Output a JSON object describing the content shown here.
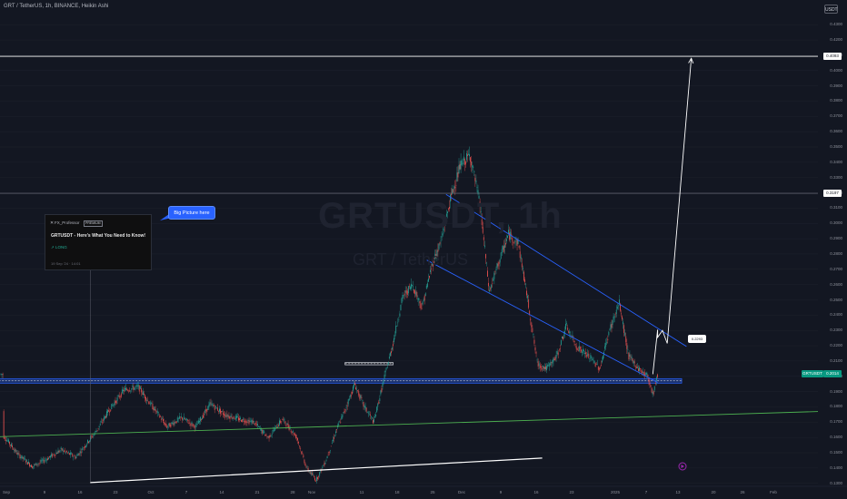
{
  "header": {
    "title": "GRT / TetherUS, 1h, BINANCE, Heikin Ashi",
    "currency_button": "USDT"
  },
  "watermark": {
    "symbol": "GRTUSDT, 1h",
    "name": "GRT / TetherUS"
  },
  "idea_card": {
    "author": "FX_Professor",
    "badge": "PREMIUM",
    "title": "GRTUSDT - Here's What You Need to Know!",
    "direction": "LONG",
    "date": "19 Sep '24 · 14:01"
  },
  "annotation": {
    "bubble": "Big Picture here",
    "price_tag": "0.2293"
  },
  "colors": {
    "background": "#131722",
    "bull": "#26a69a",
    "bear": "#ef5350",
    "trend_blue": "#2962ff",
    "support_green": "#4caf50",
    "arrow": "#ffffff",
    "grid": "#1e222d"
  },
  "chart_data": {
    "type": "candlestick",
    "style": "Heikin Ashi",
    "symbol": "GRTUSDT",
    "exchange": "BINANCE",
    "timeframe": "1h",
    "y_axis": {
      "ylim": [
        0.125,
        0.435
      ],
      "ticks": [
        "0.1300",
        "0.1400",
        "0.1500",
        "0.1600",
        "0.1700",
        "0.1800",
        "0.1900",
        "0.2000",
        "0.2100",
        "0.2200",
        "0.2300",
        "0.2400",
        "0.2500",
        "0.2600",
        "0.2700",
        "0.2800",
        "0.2900",
        "0.3000",
        "0.3100",
        "0.3200",
        "0.3300",
        "0.3400",
        "0.3500",
        "0.3600",
        "0.3700",
        "0.3800",
        "0.3900",
        "0.4000",
        "0.4100",
        "0.4200",
        "0.4300"
      ],
      "highlighted": [
        {
          "label": "0.4093",
          "value": 0.4093,
          "style": "white"
        },
        {
          "label": "0.3197",
          "value": 0.3197,
          "style": "white"
        },
        {
          "label": "GRTUSDT",
          "value": 0.2014,
          "style": "green"
        },
        {
          "label": "0.2014",
          "value": 0.2014,
          "style": "green"
        }
      ]
    },
    "x_axis": {
      "ticks": [
        "Sep",
        "9",
        "16",
        "23",
        "Oct",
        "7",
        "14",
        "21",
        "28",
        "Nov",
        "11",
        "18",
        "25",
        "Dec",
        "9",
        "16",
        "23",
        "2025",
        "7",
        "13",
        "20",
        "26",
        "Feb"
      ]
    },
    "price_path": [
      [
        "2024-09-01",
        0.161
      ],
      [
        "2024-09-04",
        0.149
      ],
      [
        "2024-09-07",
        0.141
      ],
      [
        "2024-09-10",
        0.146
      ],
      [
        "2024-09-13",
        0.152
      ],
      [
        "2024-09-16",
        0.147
      ],
      [
        "2024-09-20",
        0.163
      ],
      [
        "2024-09-23",
        0.178
      ],
      [
        "2024-09-26",
        0.191
      ],
      [
        "2024-09-29",
        0.193
      ],
      [
        "2024-10-02",
        0.18
      ],
      [
        "2024-10-05",
        0.167
      ],
      [
        "2024-10-08",
        0.173
      ],
      [
        "2024-10-11",
        0.167
      ],
      [
        "2024-10-14",
        0.182
      ],
      [
        "2024-10-17",
        0.175
      ],
      [
        "2024-10-20",
        0.172
      ],
      [
        "2024-10-23",
        0.17
      ],
      [
        "2024-10-26",
        0.16
      ],
      [
        "2024-10-29",
        0.172
      ],
      [
        "2024-11-01",
        0.16
      ],
      [
        "2024-11-03",
        0.14
      ],
      [
        "2024-11-05",
        0.132
      ],
      [
        "2024-11-07",
        0.145
      ],
      [
        "2024-11-09",
        0.163
      ],
      [
        "2024-11-11",
        0.178
      ],
      [
        "2024-11-13",
        0.195
      ],
      [
        "2024-11-15",
        0.18
      ],
      [
        "2024-11-17",
        0.17
      ],
      [
        "2024-11-19",
        0.197
      ],
      [
        "2024-11-21",
        0.222
      ],
      [
        "2024-11-23",
        0.252
      ],
      [
        "2024-11-25",
        0.26
      ],
      [
        "2024-11-27",
        0.245
      ],
      [
        "2024-11-29",
        0.272
      ],
      [
        "2024-12-01",
        0.289
      ],
      [
        "2024-12-03",
        0.317
      ],
      [
        "2024-12-05",
        0.338
      ],
      [
        "2024-12-07",
        0.345
      ],
      [
        "2024-12-09",
        0.313
      ],
      [
        "2024-12-11",
        0.255
      ],
      [
        "2024-12-13",
        0.275
      ],
      [
        "2024-12-15",
        0.293
      ],
      [
        "2024-12-17",
        0.287
      ],
      [
        "2024-12-19",
        0.25
      ],
      [
        "2024-12-21",
        0.208
      ],
      [
        "2024-12-23",
        0.205
      ],
      [
        "2024-12-25",
        0.213
      ],
      [
        "2024-12-27",
        0.233
      ],
      [
        "2024-12-29",
        0.22
      ],
      [
        "2025-01-01",
        0.212
      ],
      [
        "2025-01-03",
        0.205
      ],
      [
        "2025-01-05",
        0.23
      ],
      [
        "2025-01-07",
        0.248
      ],
      [
        "2025-01-09",
        0.213
      ],
      [
        "2025-01-11",
        0.205
      ],
      [
        "2025-01-13",
        0.2
      ],
      [
        "2025-01-14",
        0.188
      ],
      [
        "2025-01-15",
        0.2014
      ]
    ],
    "drawings": [
      {
        "kind": "horizontal_line",
        "name": "resistance-0.4093",
        "y": 0.4093
      },
      {
        "kind": "horizontal_line",
        "name": "level-0.3197",
        "y": 0.3197
      },
      {
        "kind": "zone",
        "name": "support-zone",
        "y": [
          0.1955,
          0.1985
        ],
        "x": [
          "2024-08-31",
          "2025-01-20"
        ]
      },
      {
        "kind": "zone",
        "name": "small-box",
        "y": [
          0.2075,
          0.209
        ],
        "x": [
          "2024-11-11",
          "2024-11-21"
        ]
      },
      {
        "kind": "trendline",
        "name": "upper-channel",
        "from": [
          "2024-12-02",
          0.319
        ],
        "to": [
          "2025-01-21",
          0.2195
        ]
      },
      {
        "kind": "trendline",
        "name": "lower-channel",
        "from": [
          "2024-11-28",
          0.276
        ],
        "to": [
          "2025-01-15",
          0.196
        ]
      },
      {
        "kind": "trendline",
        "name": "green-support",
        "from": [
          "2024-08-31",
          0.1605
        ],
        "to": [
          "2025-02-28",
          0.178
        ]
      },
      {
        "kind": "trendline",
        "name": "white-support",
        "from": [
          "2024-09-19",
          0.1305
        ],
        "to": [
          "2024-12-22",
          0.1465
        ]
      },
      {
        "kind": "path",
        "name": "projection",
        "points": [
          [
            "2025-01-14",
            0.2014
          ],
          [
            "2025-01-15",
            0.2305
          ],
          [
            "2025-01-15",
            0.2255
          ],
          [
            "2025-01-16",
            0.23
          ],
          [
            "2025-01-17",
            0.2215
          ],
          [
            "2025-01-22",
            0.408
          ]
        ]
      },
      {
        "kind": "vertical_line",
        "name": "idea-marker",
        "x": "2024-09-19"
      }
    ]
  }
}
